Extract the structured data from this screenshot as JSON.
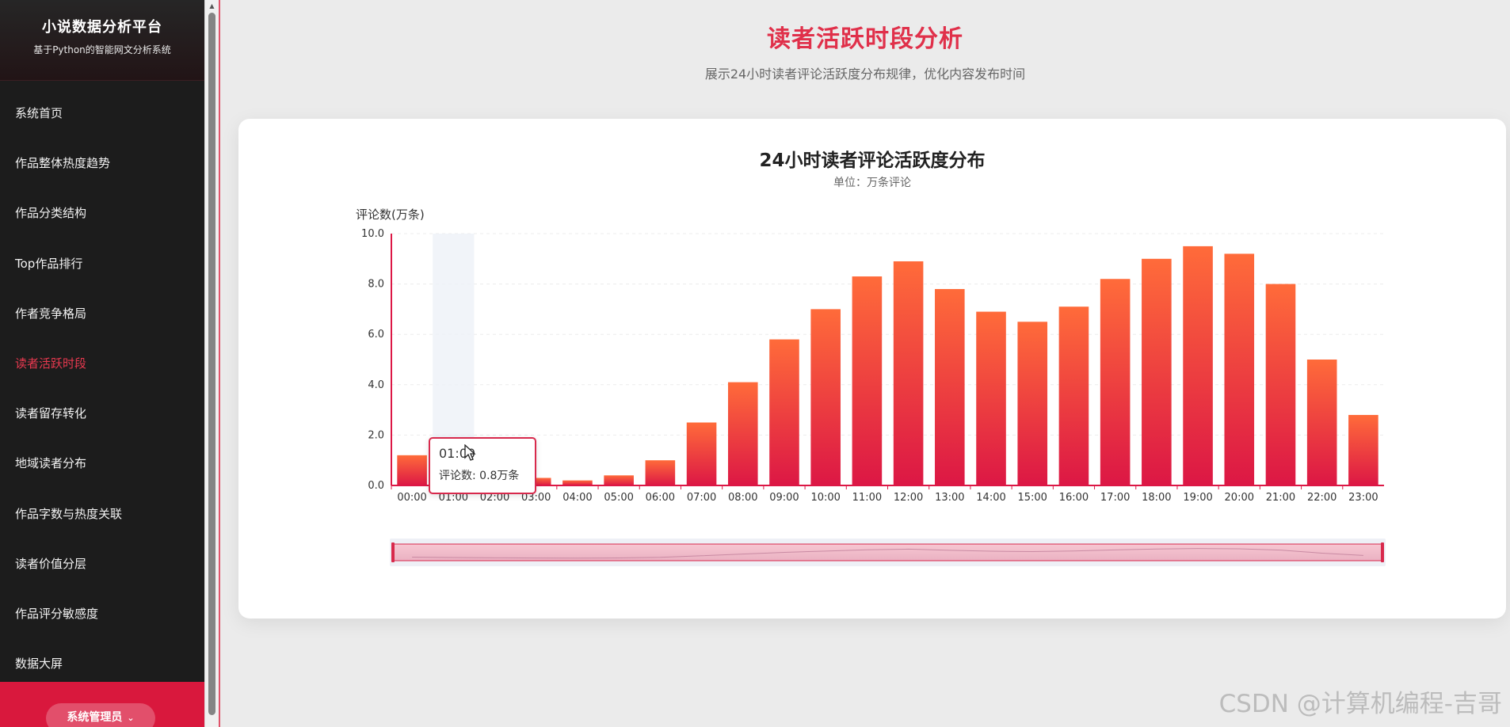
{
  "sidebar": {
    "brand_title": "小说数据分析平台",
    "brand_subtitle": "基于Python的智能网文分析系统",
    "items": [
      {
        "label": "系统首页"
      },
      {
        "label": "作品整体热度趋势"
      },
      {
        "label": "作品分类结构"
      },
      {
        "label": "Top作品排行"
      },
      {
        "label": "作者竞争格局"
      },
      {
        "label": "读者活跃时段",
        "active": true
      },
      {
        "label": "读者留存转化"
      },
      {
        "label": "地域读者分布"
      },
      {
        "label": "作品字数与热度关联"
      },
      {
        "label": "读者价值分层"
      },
      {
        "label": "作品评分敏感度"
      },
      {
        "label": "数据大屏"
      }
    ],
    "admin_label": "系统管理员"
  },
  "page": {
    "title": "读者活跃时段分析",
    "subtitle": "展示24小时读者评论活跃度分布规律，优化内容发布时间"
  },
  "chart_data": {
    "type": "bar",
    "title": "24小时读者评论活跃度分布",
    "subtitle": "单位：万条评论",
    "ylabel": "评论数(万条)",
    "xlabel": "",
    "ylim": [
      0,
      10
    ],
    "yticks": [
      "0.0",
      "2.0",
      "4.0",
      "6.0",
      "8.0",
      "10.0"
    ],
    "grid": true,
    "categories": [
      "00:00",
      "01:00",
      "02:00",
      "03:00",
      "04:00",
      "05:00",
      "06:00",
      "07:00",
      "08:00",
      "09:00",
      "10:00",
      "11:00",
      "12:00",
      "13:00",
      "14:00",
      "15:00",
      "16:00",
      "17:00",
      "18:00",
      "19:00",
      "20:00",
      "21:00",
      "22:00",
      "23:00"
    ],
    "values": [
      1.2,
      0.8,
      0.5,
      0.3,
      0.2,
      0.4,
      1.0,
      2.5,
      4.1,
      5.8,
      7.0,
      8.3,
      8.9,
      7.8,
      6.9,
      6.5,
      7.1,
      8.2,
      9.0,
      9.5,
      9.2,
      8.0,
      5.0,
      2.8
    ],
    "colors": {
      "bar_top": "#ff6b3a",
      "bar_bottom": "#dc1745",
      "axis": "#dc1745"
    },
    "highlight_index": 1,
    "datazoom": {
      "start": 0,
      "end": 100
    }
  },
  "tooltip": {
    "title": "01:00",
    "value": "评论数: 0.8万条"
  },
  "watermark": "CSDN @计算机编程-吉哥",
  "icons": {
    "admin_chevron": "chevron-down-icon",
    "cursor": "mouse-pointer-icon"
  }
}
